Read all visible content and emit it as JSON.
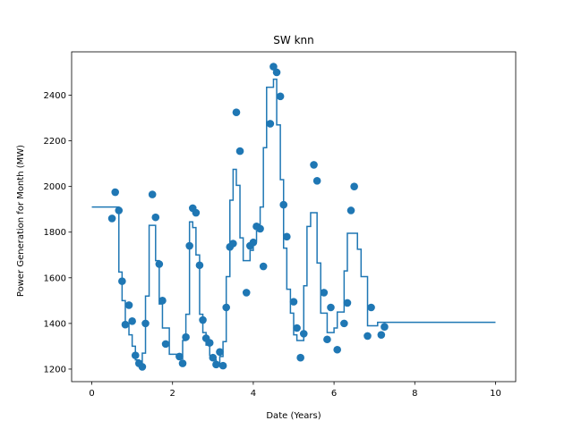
{
  "chart_data": {
    "type": "scatter",
    "title": "SW knn",
    "xlabel": "Date (Years)",
    "ylabel": "Power Generation for Month (MW)",
    "xlim": [
      -0.5,
      10.5
    ],
    "ylim": [
      1145,
      2590
    ],
    "x_ticks": [
      0,
      2,
      4,
      6,
      8,
      10
    ],
    "y_ticks": [
      1200,
      1400,
      1600,
      1800,
      2000,
      2200,
      2400
    ],
    "grid": false,
    "colors": {
      "series": "#1f77b4",
      "axes": "#000000"
    },
    "series": [
      {
        "kind": "points",
        "points": [
          [
            0.5,
            1860
          ],
          [
            0.58,
            1975
          ],
          [
            0.67,
            1895
          ],
          [
            0.75,
            1585
          ],
          [
            0.83,
            1395
          ],
          [
            0.92,
            1480
          ],
          [
            1.0,
            1410
          ],
          [
            1.08,
            1260
          ],
          [
            1.17,
            1225
          ],
          [
            1.25,
            1210
          ],
          [
            1.33,
            1400
          ],
          [
            1.5,
            1965
          ],
          [
            1.58,
            1865
          ],
          [
            1.67,
            1660
          ],
          [
            1.75,
            1500
          ],
          [
            1.83,
            1310
          ],
          [
            2.17,
            1255
          ],
          [
            2.25,
            1225
          ],
          [
            2.33,
            1340
          ],
          [
            2.42,
            1740
          ],
          [
            2.5,
            1905
          ],
          [
            2.58,
            1885
          ],
          [
            2.67,
            1655
          ],
          [
            2.75,
            1415
          ],
          [
            2.83,
            1335
          ],
          [
            2.92,
            1315
          ],
          [
            3.0,
            1250
          ],
          [
            3.08,
            1220
          ],
          [
            3.17,
            1275
          ],
          [
            3.25,
            1215
          ],
          [
            3.33,
            1470
          ],
          [
            3.42,
            1735
          ],
          [
            3.5,
            1750
          ],
          [
            3.58,
            2325
          ],
          [
            3.67,
            2155
          ],
          [
            3.83,
            1535
          ],
          [
            3.92,
            1740
          ],
          [
            4.0,
            1755
          ],
          [
            4.08,
            1825
          ],
          [
            4.17,
            1815
          ],
          [
            4.25,
            1650
          ],
          [
            4.42,
            2275
          ],
          [
            4.5,
            2525
          ],
          [
            4.58,
            2500
          ],
          [
            4.67,
            2395
          ],
          [
            4.75,
            1920
          ],
          [
            4.83,
            1780
          ],
          [
            5.0,
            1495
          ],
          [
            5.08,
            1380
          ],
          [
            5.17,
            1250
          ],
          [
            5.25,
            1355
          ],
          [
            5.5,
            2095
          ],
          [
            5.58,
            2025
          ],
          [
            5.75,
            1535
          ],
          [
            5.83,
            1330
          ],
          [
            5.92,
            1470
          ],
          [
            6.08,
            1285
          ],
          [
            6.25,
            1400
          ],
          [
            6.33,
            1490
          ],
          [
            6.42,
            1895
          ],
          [
            6.5,
            2000
          ],
          [
            6.83,
            1345
          ],
          [
            6.92,
            1470
          ],
          [
            7.17,
            1350
          ],
          [
            7.25,
            1385
          ]
        ]
      },
      {
        "kind": "step",
        "points": [
          [
            0.0,
            1910
          ],
          [
            0.67,
            1910
          ],
          [
            0.67,
            1625
          ],
          [
            0.75,
            1625
          ],
          [
            0.75,
            1500
          ],
          [
            0.83,
            1500
          ],
          [
            0.83,
            1400
          ],
          [
            0.92,
            1400
          ],
          [
            0.92,
            1350
          ],
          [
            1.0,
            1350
          ],
          [
            1.0,
            1300
          ],
          [
            1.08,
            1300
          ],
          [
            1.08,
            1240
          ],
          [
            1.17,
            1240
          ],
          [
            1.17,
            1215
          ],
          [
            1.25,
            1215
          ],
          [
            1.25,
            1270
          ],
          [
            1.33,
            1270
          ],
          [
            1.33,
            1520
          ],
          [
            1.42,
            1520
          ],
          [
            1.42,
            1830
          ],
          [
            1.58,
            1830
          ],
          [
            1.58,
            1675
          ],
          [
            1.67,
            1675
          ],
          [
            1.67,
            1485
          ],
          [
            1.75,
            1485
          ],
          [
            1.75,
            1380
          ],
          [
            1.92,
            1380
          ],
          [
            1.92,
            1265
          ],
          [
            2.17,
            1265
          ],
          [
            2.17,
            1245
          ],
          [
            2.25,
            1245
          ],
          [
            2.25,
            1325
          ],
          [
            2.33,
            1325
          ],
          [
            2.33,
            1440
          ],
          [
            2.42,
            1440
          ],
          [
            2.42,
            1845
          ],
          [
            2.5,
            1845
          ],
          [
            2.5,
            1820
          ],
          [
            2.58,
            1820
          ],
          [
            2.58,
            1700
          ],
          [
            2.67,
            1700
          ],
          [
            2.67,
            1440
          ],
          [
            2.75,
            1440
          ],
          [
            2.75,
            1360
          ],
          [
            2.83,
            1360
          ],
          [
            2.83,
            1305
          ],
          [
            2.92,
            1305
          ],
          [
            2.92,
            1260
          ],
          [
            3.0,
            1260
          ],
          [
            3.0,
            1240
          ],
          [
            3.08,
            1240
          ],
          [
            3.08,
            1220
          ],
          [
            3.17,
            1220
          ],
          [
            3.17,
            1255
          ],
          [
            3.25,
            1255
          ],
          [
            3.25,
            1320
          ],
          [
            3.33,
            1320
          ],
          [
            3.33,
            1605
          ],
          [
            3.42,
            1605
          ],
          [
            3.42,
            1940
          ],
          [
            3.5,
            1940
          ],
          [
            3.5,
            2075
          ],
          [
            3.58,
            2075
          ],
          [
            3.58,
            2005
          ],
          [
            3.67,
            2005
          ],
          [
            3.67,
            1775
          ],
          [
            3.75,
            1775
          ],
          [
            3.75,
            1675
          ],
          [
            3.92,
            1675
          ],
          [
            3.92,
            1720
          ],
          [
            4.0,
            1720
          ],
          [
            4.0,
            1760
          ],
          [
            4.08,
            1760
          ],
          [
            4.08,
            1805
          ],
          [
            4.17,
            1805
          ],
          [
            4.17,
            1910
          ],
          [
            4.25,
            1910
          ],
          [
            4.25,
            2170
          ],
          [
            4.33,
            2170
          ],
          [
            4.33,
            2435
          ],
          [
            4.5,
            2435
          ],
          [
            4.5,
            2470
          ],
          [
            4.58,
            2470
          ],
          [
            4.58,
            2270
          ],
          [
            4.67,
            2270
          ],
          [
            4.67,
            2030
          ],
          [
            4.75,
            2030
          ],
          [
            4.75,
            1730
          ],
          [
            4.83,
            1730
          ],
          [
            4.83,
            1550
          ],
          [
            4.92,
            1550
          ],
          [
            4.92,
            1445
          ],
          [
            5.0,
            1445
          ],
          [
            5.0,
            1350
          ],
          [
            5.08,
            1350
          ],
          [
            5.08,
            1325
          ],
          [
            5.25,
            1325
          ],
          [
            5.25,
            1565
          ],
          [
            5.33,
            1565
          ],
          [
            5.33,
            1825
          ],
          [
            5.42,
            1825
          ],
          [
            5.42,
            1885
          ],
          [
            5.58,
            1885
          ],
          [
            5.58,
            1665
          ],
          [
            5.67,
            1665
          ],
          [
            5.67,
            1445
          ],
          [
            5.83,
            1445
          ],
          [
            5.83,
            1360
          ],
          [
            6.0,
            1360
          ],
          [
            6.0,
            1380
          ],
          [
            6.08,
            1380
          ],
          [
            6.08,
            1450
          ],
          [
            6.25,
            1450
          ],
          [
            6.25,
            1630
          ],
          [
            6.33,
            1630
          ],
          [
            6.33,
            1795
          ],
          [
            6.58,
            1795
          ],
          [
            6.58,
            1725
          ],
          [
            6.67,
            1725
          ],
          [
            6.67,
            1605
          ],
          [
            6.83,
            1605
          ],
          [
            6.83,
            1390
          ],
          [
            7.08,
            1390
          ],
          [
            7.08,
            1405
          ],
          [
            10.0,
            1405
          ]
        ]
      }
    ]
  }
}
